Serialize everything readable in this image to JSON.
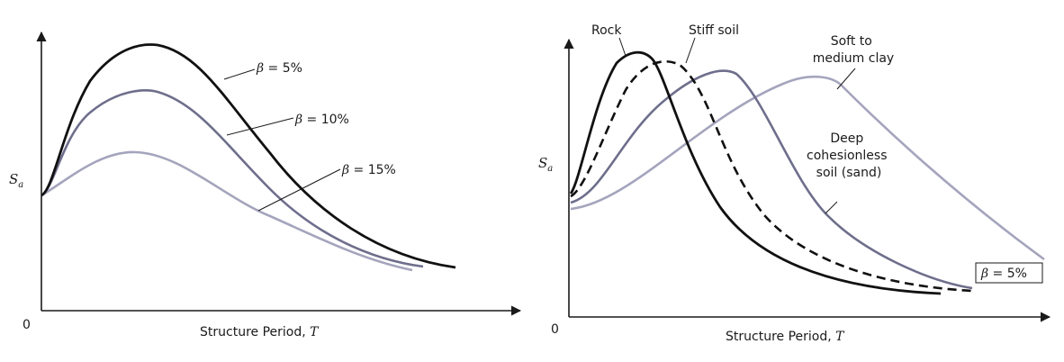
{
  "colors": {
    "axis": "#1a1a1a",
    "black": "#111111",
    "medium": "#6e6e8c",
    "light": "#a4a4bd"
  },
  "charts": [
    {
      "origin_label": "0",
      "y_label": "S",
      "y_label_sub": "a",
      "x_label_text": "Structure Period, ",
      "x_label_var": "T",
      "annotations": [
        {
          "prefix": "β",
          "text": " = 5%"
        },
        {
          "prefix": "β",
          "text": " = 10%"
        },
        {
          "prefix": "β",
          "text": " = 15%"
        }
      ]
    },
    {
      "origin_label": "0",
      "y_label": "S",
      "y_label_sub": "a",
      "x_label_text": "Structure Period, ",
      "x_label_var": "T",
      "annotations": [
        {
          "lines": [
            "Rock"
          ]
        },
        {
          "lines": [
            "Stiff soil"
          ]
        },
        {
          "lines": [
            "Soft to",
            "medium clay"
          ]
        },
        {
          "lines": [
            "Deep",
            "cohesionless",
            "soil (sand)"
          ]
        }
      ],
      "boxed_note": {
        "prefix": "β",
        "text": " = 5%"
      }
    }
  ],
  "chart_data": [
    {
      "type": "line",
      "xlabel": "Structure Period, T",
      "ylabel": "Sa",
      "series": [
        {
          "name": "β = 5%",
          "color": "black",
          "dash": false,
          "x": [
            0,
            0.03,
            0.1,
            0.2,
            0.3,
            0.4,
            0.5,
            0.6,
            0.7,
            0.8,
            0.9,
            1.0
          ],
          "y": [
            0.45,
            0.48,
            0.75,
            0.92,
            0.99,
            0.94,
            0.78,
            0.57,
            0.37,
            0.21,
            0.1,
            0.06
          ]
        },
        {
          "name": "β = 10%",
          "color": "medium",
          "dash": false,
          "x": [
            0,
            0.03,
            0.1,
            0.2,
            0.3,
            0.4,
            0.5,
            0.6,
            0.7,
            0.8,
            0.9,
            0.95
          ],
          "y": [
            0.45,
            0.47,
            0.6,
            0.72,
            0.79,
            0.75,
            0.6,
            0.43,
            0.28,
            0.16,
            0.09,
            0.07
          ]
        },
        {
          "name": "β = 15%",
          "color": "light",
          "dash": false,
          "x": [
            0,
            0.03,
            0.1,
            0.2,
            0.3,
            0.4,
            0.5,
            0.6,
            0.7,
            0.8,
            0.9,
            0.92
          ],
          "y": [
            0.45,
            0.46,
            0.51,
            0.56,
            0.56,
            0.47,
            0.36,
            0.25,
            0.16,
            0.1,
            0.07,
            0.06
          ]
        }
      ]
    },
    {
      "type": "line",
      "xlabel": "Structure Period, T",
      "ylabel": "Sa",
      "series": [
        {
          "name": "Rock",
          "color": "black",
          "dash": false,
          "x": [
            0,
            0.01,
            0.05,
            0.1,
            0.14,
            0.18,
            0.23,
            0.3,
            0.4,
            0.5,
            0.65,
            0.8
          ],
          "y": [
            0.42,
            0.44,
            0.75,
            0.94,
            0.96,
            0.85,
            0.64,
            0.42,
            0.24,
            0.14,
            0.07,
            0.05
          ]
        },
        {
          "name": "Stiff soil",
          "color": "black",
          "dash": true,
          "x": [
            0,
            0.02,
            0.08,
            0.15,
            0.2,
            0.24,
            0.3,
            0.38,
            0.48,
            0.6,
            0.72,
            0.83
          ],
          "y": [
            0.4,
            0.44,
            0.65,
            0.88,
            0.95,
            0.91,
            0.75,
            0.53,
            0.33,
            0.19,
            0.11,
            0.06
          ]
        },
        {
          "name": "Soft to medium clay",
          "color": "medium",
          "dash": false,
          "x": [
            0,
            0.05,
            0.12,
            0.2,
            0.28,
            0.34,
            0.38,
            0.44,
            0.52,
            0.62,
            0.73,
            0.83
          ],
          "y": [
            0.38,
            0.43,
            0.57,
            0.7,
            0.8,
            0.84,
            0.78,
            0.6,
            0.38,
            0.2,
            0.1,
            0.06
          ]
        },
        {
          "name": "Deep cohesionless soil (sand)",
          "color": "light",
          "dash": false,
          "x": [
            0,
            0.05,
            0.15,
            0.25,
            0.35,
            0.45,
            0.5,
            0.55,
            0.63,
            0.73,
            0.85,
            0.97
          ],
          "y": [
            0.36,
            0.38,
            0.5,
            0.64,
            0.74,
            0.77,
            0.76,
            0.67,
            0.52,
            0.38,
            0.26,
            0.14
          ]
        }
      ]
    }
  ]
}
